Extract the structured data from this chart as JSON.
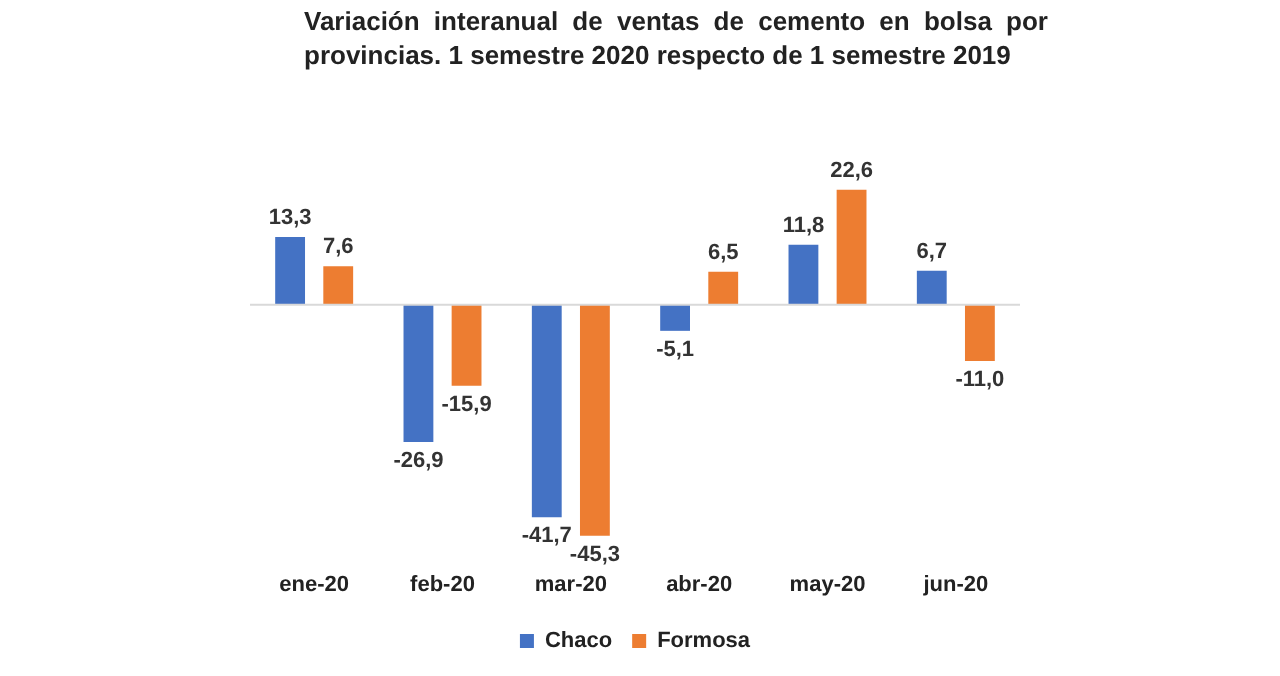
{
  "chart_data": {
    "type": "bar",
    "title": "Variación interanual de ventas de cemento en bolsa por provincias. 1 semestre 2020 respecto de 1 semestre 2019",
    "categories": [
      "ene-20",
      "feb-20",
      "mar-20",
      "abr-20",
      "may-20",
      "jun-20"
    ],
    "series": [
      {
        "name": "Chaco",
        "color": "#4472c4",
        "values": [
          13.3,
          -26.9,
          -41.7,
          -5.1,
          11.8,
          6.7
        ],
        "value_labels": [
          "13,3",
          "-26,9",
          "-41,7",
          "-5,1",
          "11,8",
          "6,7"
        ]
      },
      {
        "name": "Formosa",
        "color": "#ed7d31",
        "values": [
          7.6,
          -15.9,
          -45.3,
          6.5,
          22.6,
          -11.0
        ],
        "value_labels": [
          "7,6",
          "-15,9",
          "-45,3",
          "6,5",
          "22,6",
          "-11,0"
        ]
      }
    ],
    "tick_labels": "x",
    "legend": "bottom",
    "grid": false
  }
}
